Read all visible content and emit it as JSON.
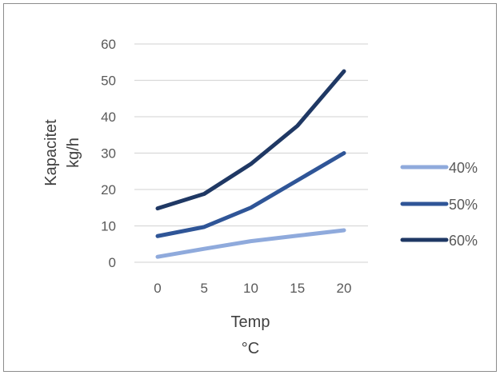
{
  "chart_data": {
    "type": "line",
    "title": "",
    "xlabel": "Temp",
    "xunit": "°C",
    "ylabel": "Kapacitet",
    "yunit": "kg/h",
    "x": [
      0,
      5,
      10,
      15,
      20
    ],
    "x_tick_labels": [
      "0",
      "5",
      "10",
      "15",
      "20"
    ],
    "ylim": [
      0,
      60
    ],
    "y_ticks": [
      0,
      10,
      20,
      30,
      40,
      50,
      60
    ],
    "y_tick_labels": [
      "0",
      "10",
      "20",
      "30",
      "40",
      "50",
      "60"
    ],
    "grid": "horizontal",
    "legend_position": "right",
    "series": [
      {
        "name": "40%",
        "color": "#8faadc",
        "values": [
          1.5,
          3.7,
          5.8,
          7.3,
          8.8
        ]
      },
      {
        "name": "50%",
        "color": "#2f5597",
        "values": [
          7.2,
          9.7,
          15.0,
          22.5,
          30.0
        ]
      },
      {
        "name": "60%",
        "color": "#1f3864",
        "values": [
          14.8,
          18.8,
          27.0,
          37.5,
          52.5
        ]
      }
    ]
  }
}
